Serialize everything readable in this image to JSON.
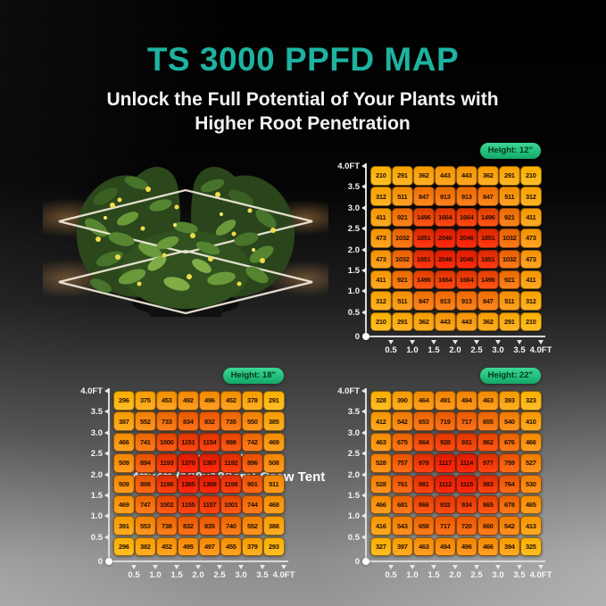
{
  "page": {
    "title": "TS 3000 PPFD MAP",
    "subtitle": "Unlock the Full Potential of Your Plants with Higher Root Penetration",
    "caption": [
      "Tested in a",
      "4ftx4ft (120x120cm) Grow Tent"
    ]
  },
  "colors": {
    "title_teal": "#1db3a0",
    "badge_green": "#2ed184",
    "badge_text": "#05361f",
    "axis_text": "#f5f5f5",
    "cell_low": "#ffb428",
    "cell_high": "#e8380f"
  },
  "chart_data": [
    {
      "type": "heatmap",
      "title": "Height: 12\"",
      "x_ticks": [
        "0.5",
        "1.0",
        "1.5",
        "2.0",
        "2.5",
        "3.0",
        "3.5",
        "4.0FT"
      ],
      "y_ticks": [
        "4.0FT",
        "3.5",
        "3.0",
        "2.5",
        "2.0",
        "1.5",
        "1.0",
        "0.5",
        "0"
      ],
      "values": [
        [
          210,
          291,
          362,
          443,
          443,
          362,
          291,
          210
        ],
        [
          312,
          511,
          847,
          913,
          913,
          847,
          511,
          312
        ],
        [
          411,
          921,
          1496,
          1664,
          1664,
          1496,
          921,
          411
        ],
        [
          473,
          1032,
          1851,
          2046,
          2046,
          1851,
          1032,
          473
        ],
        [
          473,
          1032,
          1851,
          2046,
          2046,
          1851,
          1032,
          473
        ],
        [
          411,
          921,
          1496,
          1664,
          1664,
          1496,
          921,
          411
        ],
        [
          312,
          511,
          847,
          913,
          913,
          847,
          511,
          312
        ],
        [
          210,
          291,
          362,
          443,
          443,
          362,
          291,
          210
        ]
      ]
    },
    {
      "type": "heatmap",
      "title": "Height: 18\"",
      "x_ticks": [
        "0.5",
        "1.0",
        "1.5",
        "2.0",
        "2.5",
        "3.0",
        "3.5",
        "4.0FT"
      ],
      "y_ticks": [
        "4.0FT",
        "3.5",
        "3.0",
        "2.5",
        "2.0",
        "1.5",
        "1.0",
        "0.5",
        "0"
      ],
      "values": [
        [
          296,
          375,
          453,
          492,
          496,
          452,
          378,
          291
        ],
        [
          387,
          552,
          733,
          834,
          832,
          735,
          550,
          385
        ],
        [
          466,
          741,
          1000,
          1151,
          1154,
          998,
          742,
          469
        ],
        [
          509,
          894,
          1193,
          1370,
          1367,
          1192,
          896,
          508
        ],
        [
          509,
          898,
          1196,
          1365,
          1368,
          1198,
          901,
          511
        ],
        [
          469,
          747,
          1002,
          1155,
          1157,
          1001,
          744,
          468
        ],
        [
          391,
          553,
          738,
          832,
          835,
          740,
          552,
          388
        ],
        [
          296,
          382,
          452,
          495,
          497,
          455,
          379,
          293
        ]
      ]
    },
    {
      "type": "heatmap",
      "title": "Height: 22\"",
      "x_ticks": [
        "0.5",
        "1.0",
        "1.5",
        "2.0",
        "2.5",
        "3.0",
        "3.5",
        "4.0FT"
      ],
      "y_ticks": [
        "4.0FT",
        "3.5",
        "3.0",
        "2.5",
        "2.0",
        "1.5",
        "1.0",
        "0.5",
        "0"
      ],
      "values": [
        [
          328,
          390,
          464,
          491,
          494,
          463,
          393,
          323
        ],
        [
          412,
          542,
          653,
          719,
          717,
          655,
          540,
          410
        ],
        [
          463,
          675,
          864,
          928,
          931,
          862,
          676,
          466
        ],
        [
          528,
          757,
          978,
          1117,
          1114,
          977,
          759,
          527
        ],
        [
          528,
          761,
          981,
          1112,
          1115,
          983,
          764,
          530
        ],
        [
          466,
          681,
          866,
          932,
          934,
          865,
          678,
          465
        ],
        [
          416,
          543,
          658,
          717,
          720,
          660,
          542,
          413
        ],
        [
          327,
          397,
          463,
          494,
          496,
          466,
          394,
          325
        ]
      ]
    }
  ]
}
